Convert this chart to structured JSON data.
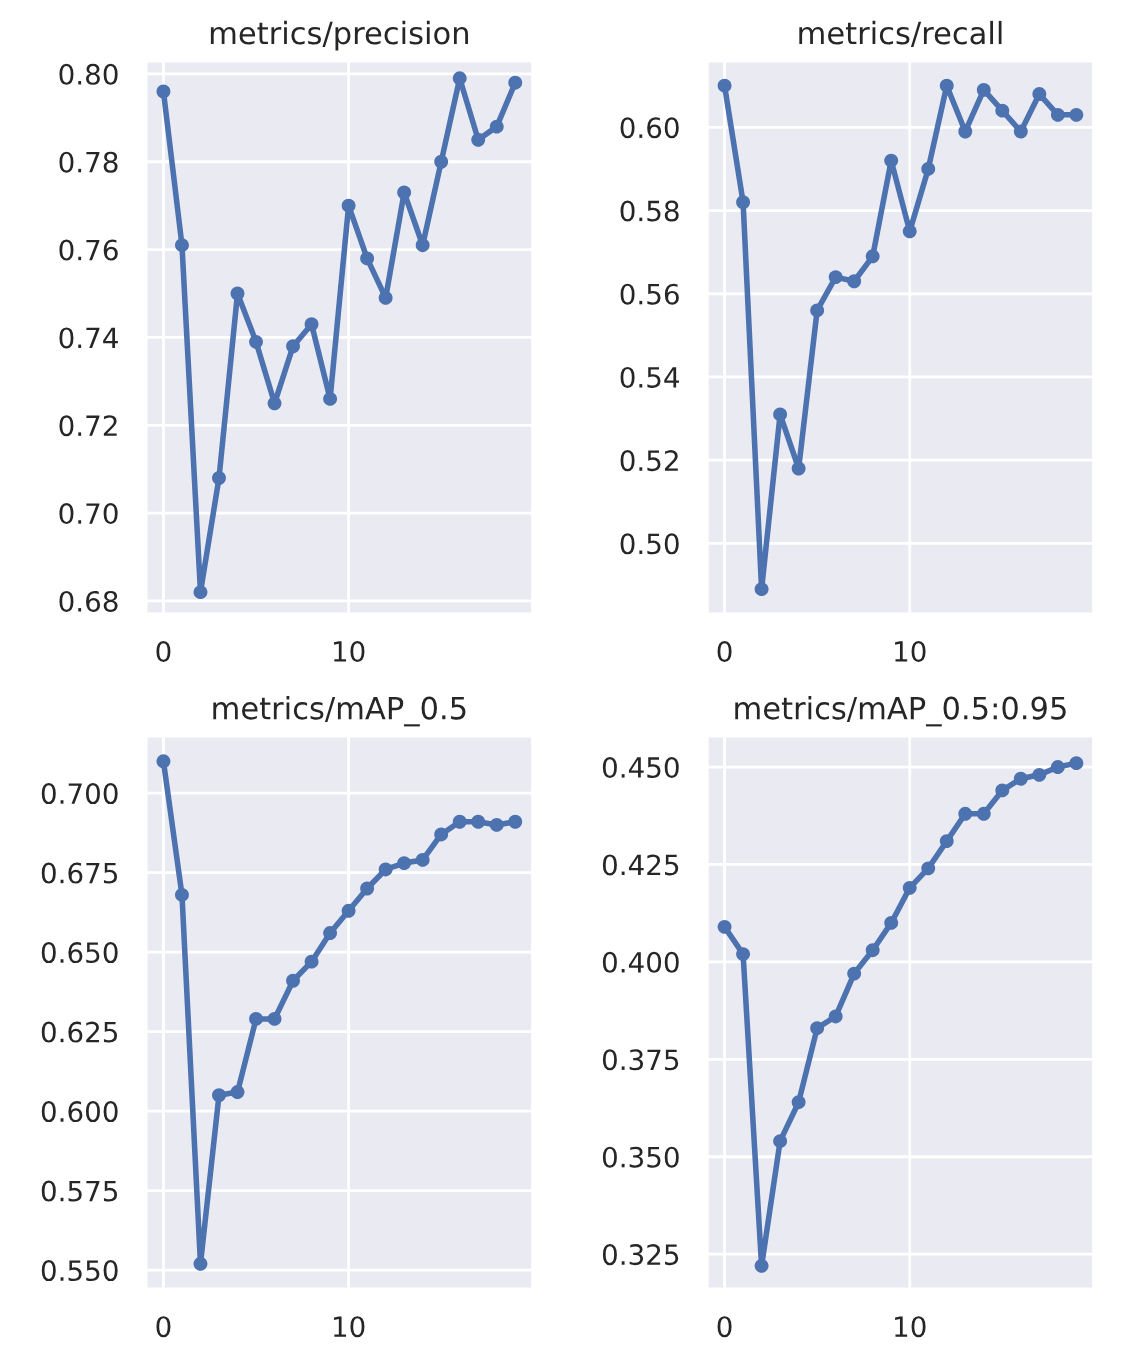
{
  "chart_data": [
    {
      "type": "line",
      "title": "metrics/precision",
      "x": [
        0,
        1,
        2,
        3,
        4,
        5,
        6,
        7,
        8,
        9,
        10,
        11,
        12,
        13,
        14,
        15,
        16,
        17,
        18,
        19
      ],
      "series": [
        {
          "color": "#4c72b0",
          "values": [
            0.796,
            0.761,
            0.682,
            0.708,
            0.75,
            0.739,
            0.725,
            0.738,
            0.743,
            0.726,
            0.77,
            0.758,
            0.749,
            0.773,
            0.761,
            0.78,
            0.799,
            0.785,
            0.788,
            0.798
          ]
        }
      ],
      "xlim": [
        -0.95,
        19.95
      ],
      "xticks": [
        0,
        10
      ],
      "ylim": [
        0.677,
        0.803
      ],
      "yticks": [
        0.68,
        {
          "value": 0.7,
          "label": "0.70"
        },
        0.72,
        0.74,
        0.76,
        0.78,
        {
          "value": 0.8,
          "label": "0.80"
        }
      ],
      "marker": "circle",
      "grid": true
    },
    {
      "type": "line",
      "title": "metrics/recall",
      "x": [
        0,
        1,
        2,
        3,
        4,
        5,
        6,
        7,
        8,
        9,
        10,
        11,
        12,
        13,
        14,
        15,
        16,
        17,
        18,
        19
      ],
      "series": [
        {
          "color": "#4c72b0",
          "values": [
            0.61,
            0.582,
            0.489,
            0.531,
            0.518,
            0.556,
            0.564,
            0.563,
            0.569,
            0.592,
            0.575,
            0.59,
            0.61,
            0.599,
            0.609,
            0.604,
            0.599,
            0.608,
            0.603,
            0.603
          ]
        }
      ],
      "xlim": [
        -0.95,
        19.95
      ],
      "xticks": [
        0,
        10
      ],
      "ylim": [
        0.483,
        0.616
      ],
      "yticks": [
        {
          "value": 0.5,
          "label": "0.50"
        },
        0.52,
        0.54,
        0.56,
        0.58,
        {
          "value": 0.6,
          "label": "0.60"
        }
      ],
      "marker": "circle",
      "grid": true
    },
    {
      "type": "line",
      "title": "metrics/mAP_0.5",
      "x": [
        0,
        1,
        2,
        3,
        4,
        5,
        6,
        7,
        8,
        9,
        10,
        11,
        12,
        13,
        14,
        15,
        16,
        17,
        18,
        19
      ],
      "series": [
        {
          "color": "#4c72b0",
          "values": [
            0.71,
            0.668,
            0.552,
            0.605,
            0.606,
            0.629,
            0.629,
            0.641,
            0.647,
            0.656,
            0.663,
            0.67,
            0.676,
            0.678,
            0.679,
            0.687,
            0.691,
            0.691,
            0.69,
            0.691
          ]
        }
      ],
      "xlim": [
        -0.95,
        19.95
      ],
      "xticks": [
        0,
        10
      ],
      "ylim": [
        0.544,
        0.718
      ],
      "yticks": [
        {
          "value": 0.55,
          "label": "0.550"
        },
        0.575,
        {
          "value": 0.6,
          "label": "0.600"
        },
        0.625,
        {
          "value": 0.65,
          "label": "0.650"
        },
        0.675,
        {
          "value": 0.7,
          "label": "0.700"
        }
      ],
      "marker": "circle",
      "grid": true
    },
    {
      "type": "line",
      "title": "metrics/mAP_0.5:0.95",
      "x": [
        0,
        1,
        2,
        3,
        4,
        5,
        6,
        7,
        8,
        9,
        10,
        11,
        12,
        13,
        14,
        15,
        16,
        17,
        18,
        19
      ],
      "series": [
        {
          "color": "#4c72b0",
          "values": [
            0.409,
            0.402,
            0.322,
            0.354,
            0.364,
            0.383,
            0.386,
            0.397,
            0.403,
            0.41,
            0.419,
            0.424,
            0.431,
            0.438,
            0.438,
            0.444,
            0.447,
            0.448,
            0.45,
            0.451
          ]
        }
      ],
      "xlim": [
        -0.95,
        19.95
      ],
      "xticks": [
        0,
        10
      ],
      "ylim": [
        0.316,
        0.458
      ],
      "yticks": [
        0.325,
        {
          "value": 0.35,
          "label": "0.350"
        },
        0.375,
        {
          "value": 0.4,
          "label": "0.400"
        },
        0.425,
        {
          "value": 0.45,
          "label": "0.450"
        }
      ],
      "marker": "circle",
      "grid": true
    }
  ]
}
